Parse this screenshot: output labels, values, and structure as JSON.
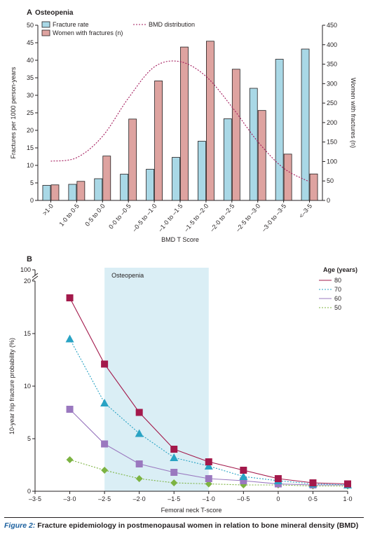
{
  "figure": {
    "caption_label": "Figure 2:",
    "caption_text": "Fracture epidemiology in postmenopausal women in relation to bone mineral density (BMD)"
  },
  "chart_data": [
    {
      "panel": "A",
      "type": "bar",
      "title": "Osteopenia",
      "xlabel": "BMD T Score",
      "ylabel": "Fractures per 1000 person-years",
      "y2label": "Women with fractures (n)",
      "ylim": [
        0,
        50
      ],
      "y2lim": [
        0,
        450
      ],
      "yticks": [
        0,
        5,
        10,
        15,
        20,
        25,
        30,
        35,
        40,
        45,
        50
      ],
      "y2ticks": [
        0,
        50,
        100,
        150,
        200,
        250,
        300,
        350,
        400,
        450
      ],
      "categories": [
        ">1·0",
        "1·0 to 0·5",
        "0·5 to 0·0",
        "0·0 to –0·5",
        "–0·5 to –1·0",
        "–1·0 to –1·5",
        "–1·5 to –2·0",
        "–2·0 to –2·5",
        "–2·5 to –3·0",
        "–3·0 to –3·5",
        "<–3·5"
      ],
      "series": [
        {
          "name": "Fracture rate",
          "axis": "left",
          "color": "#a9d8e6",
          "values": [
            4.3,
            4.6,
            6.2,
            7.5,
            8.9,
            12.3,
            16.9,
            23.3,
            32.0,
            40.3,
            43.2
          ]
        },
        {
          "name": "Women with fractures (n)",
          "axis": "right",
          "color": "#dea3a0",
          "values": [
            40,
            49,
            114,
            209,
            307,
            394,
            409,
            337,
            231,
            119,
            68
          ]
        },
        {
          "name": "BMD distribution",
          "axis": "left",
          "style": "dotted",
          "color": "#a3195b",
          "values": [
            11.2,
            12.2,
            18.3,
            29.2,
            38.1,
            39.6,
            35.4,
            26.7,
            16.8,
            9.2,
            5.3
          ]
        }
      ],
      "legend": "top-left"
    },
    {
      "panel": "B",
      "type": "line",
      "xlabel": "Femoral neck T-score",
      "ylabel": "10-year hip fracture probability (%)",
      "xlim": [
        -3.5,
        1.0
      ],
      "ylim": [
        0,
        20
      ],
      "xticks": [
        "–3·5",
        "–3·0",
        "–2·5",
        "–2·0",
        "–1·5",
        "–1·0",
        "–0·5",
        "0",
        "0·5",
        "1·0"
      ],
      "yticks": [
        0,
        5,
        10,
        15,
        20
      ],
      "ytop_label": "100",
      "shaded_region": {
        "label": "Osteopenia",
        "x_from": -2.5,
        "x_to": -1.0,
        "color": "#daeef5"
      },
      "legend_title": "Age (years)",
      "x": [
        -3.0,
        -2.5,
        -2.0,
        -1.5,
        -1.0,
        -0.5,
        0.0,
        0.5,
        1.0
      ],
      "series": [
        {
          "name": "80",
          "color": "#a3194b",
          "marker": "square",
          "dash": "solid",
          "values": [
            18.4,
            12.1,
            7.5,
            4.0,
            2.8,
            2.0,
            1.2,
            0.8,
            0.7
          ]
        },
        {
          "name": "70",
          "color": "#29a3c4",
          "marker": "triangle",
          "dash": "dotted",
          "values": [
            14.5,
            8.4,
            5.5,
            3.2,
            2.4,
            1.4,
            1.0,
            0.7,
            0.6
          ]
        },
        {
          "name": "60",
          "color": "#9a78bf",
          "marker": "square",
          "dash": "solid",
          "values": [
            7.8,
            4.5,
            2.6,
            1.8,
            1.2,
            1.0,
            0.7,
            0.6,
            0.6
          ]
        },
        {
          "name": "50",
          "color": "#7cb342",
          "marker": "diamond",
          "dash": "dotted",
          "values": [
            3.0,
            2.0,
            1.2,
            0.8,
            0.7,
            0.6,
            0.6,
            0.5,
            0.5
          ]
        }
      ]
    }
  ]
}
